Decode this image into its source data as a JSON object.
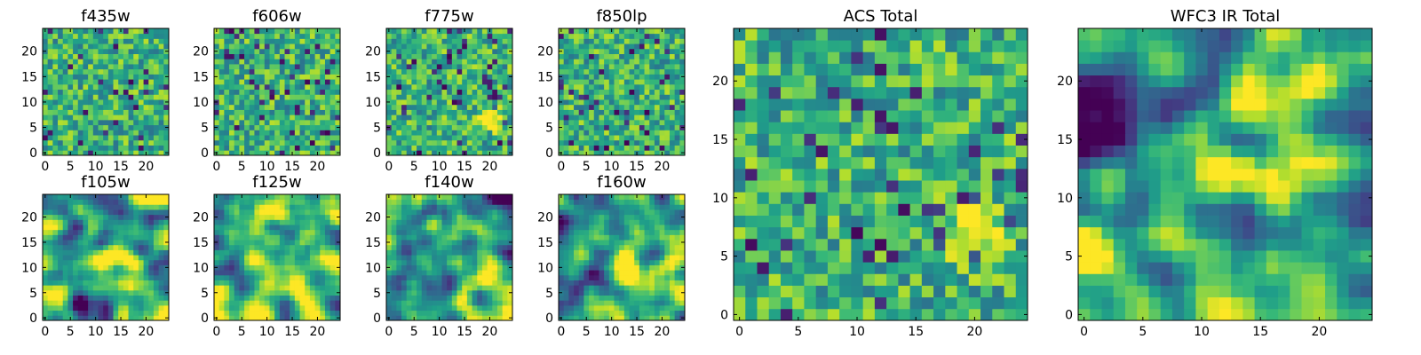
{
  "chart_data": [
    {
      "type": "heatmap",
      "title": "f435w",
      "grid_size": 25,
      "xlim": [
        -0.5,
        24.5
      ],
      "ylim": [
        -0.5,
        24.5
      ],
      "xticks": [
        0,
        5,
        10,
        15,
        20
      ],
      "yticks": [
        0,
        5,
        10,
        15,
        20
      ],
      "colormap": "viridis",
      "pattern": "noise"
    },
    {
      "type": "heatmap",
      "title": "f606w",
      "grid_size": 25,
      "xlim": [
        -0.5,
        24.5
      ],
      "ylim": [
        -0.5,
        24.5
      ],
      "xticks": [
        0,
        5,
        10,
        15,
        20
      ],
      "yticks": [
        0,
        5,
        10,
        15,
        20
      ],
      "colormap": "viridis",
      "pattern": "noise"
    },
    {
      "type": "heatmap",
      "title": "f775w",
      "grid_size": 25,
      "xlim": [
        -0.5,
        24.5
      ],
      "ylim": [
        -0.5,
        24.5
      ],
      "xticks": [
        0,
        5,
        10,
        15,
        20
      ],
      "yticks": [
        0,
        5,
        10,
        15,
        20
      ],
      "colormap": "viridis",
      "pattern": "noise",
      "bright_source": [
        20,
        7
      ]
    },
    {
      "type": "heatmap",
      "title": "f850lp",
      "grid_size": 25,
      "xlim": [
        -0.5,
        24.5
      ],
      "ylim": [
        -0.5,
        24.5
      ],
      "xticks": [
        0,
        5,
        10,
        15,
        20
      ],
      "yticks": [
        0,
        5,
        10,
        15,
        20
      ],
      "colormap": "viridis",
      "pattern": "noise"
    },
    {
      "type": "heatmap",
      "title": "f105w",
      "grid_size": 25,
      "xlim": [
        -0.5,
        24.5
      ],
      "ylim": [
        -0.5,
        24.5
      ],
      "xticks": [
        0,
        5,
        10,
        15,
        20
      ],
      "yticks": [
        0,
        5,
        10,
        15,
        20
      ],
      "colormap": "viridis",
      "pattern": "smooth",
      "bright_source": [
        12,
        12
      ]
    },
    {
      "type": "heatmap",
      "title": "f125w",
      "grid_size": 25,
      "xlim": [
        -0.5,
        24.5
      ],
      "ylim": [
        -0.5,
        24.5
      ],
      "xticks": [
        0,
        5,
        10,
        15,
        20
      ],
      "yticks": [
        0,
        5,
        10,
        15,
        20
      ],
      "colormap": "viridis",
      "pattern": "smooth"
    },
    {
      "type": "heatmap",
      "title": "f140w",
      "grid_size": 25,
      "xlim": [
        -0.5,
        24.5
      ],
      "ylim": [
        -0.5,
        24.5
      ],
      "xticks": [
        0,
        5,
        10,
        15,
        20
      ],
      "yticks": [
        0,
        5,
        10,
        15,
        20
      ],
      "colormap": "viridis",
      "pattern": "smooth"
    },
    {
      "type": "heatmap",
      "title": "f160w",
      "grid_size": 25,
      "xlim": [
        -0.5,
        24.5
      ],
      "ylim": [
        -0.5,
        24.5
      ],
      "xticks": [
        0,
        5,
        10,
        15,
        20
      ],
      "yticks": [
        0,
        5,
        10,
        15,
        20
      ],
      "colormap": "viridis",
      "pattern": "smooth",
      "bright_source": [
        12,
        11
      ]
    },
    {
      "type": "heatmap",
      "title": "ACS Total",
      "grid_size": 25,
      "xlim": [
        -0.5,
        24.5
      ],
      "ylim": [
        -0.5,
        24.5
      ],
      "xticks": [
        0,
        5,
        10,
        15,
        20
      ],
      "yticks": [
        0,
        5,
        10,
        15,
        20
      ],
      "colormap": "viridis",
      "pattern": "noise",
      "bright_source": [
        20,
        7
      ]
    },
    {
      "type": "heatmap",
      "title": "WFC3 IR Total",
      "grid_size": 25,
      "xlim": [
        -0.5,
        24.5
      ],
      "ylim": [
        -0.5,
        24.5
      ],
      "xticks": [
        0,
        5,
        10,
        15,
        20
      ],
      "yticks": [
        0,
        5,
        10,
        15,
        20
      ],
      "colormap": "viridis",
      "pattern": "smooth",
      "bright_source": [
        12,
        12
      ]
    }
  ]
}
